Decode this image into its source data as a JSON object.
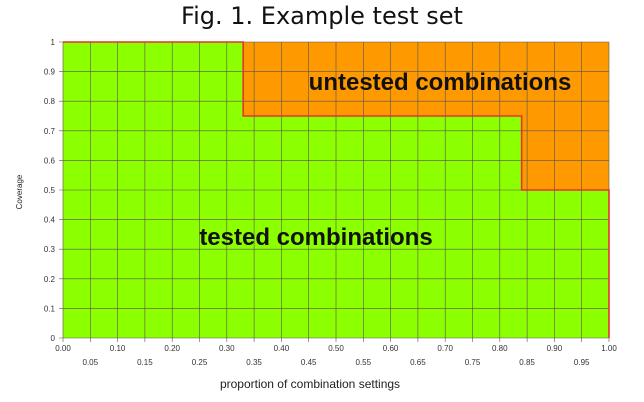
{
  "figure": {
    "title": "Fig. 1.  Example test set"
  },
  "chart_data": {
    "type": "area",
    "xlabel": "proportion of combination settings",
    "ylabel": "Coverage",
    "xlim": [
      0,
      1
    ],
    "ylim": [
      0,
      1
    ],
    "x_ticks_upper": [
      "0.00",
      "0.10",
      "0.20",
      "0.30",
      "0.40",
      "0.50",
      "0.60",
      "0.70",
      "0.80",
      "0.90",
      "1.00"
    ],
    "x_ticks_lower": [
      "0.05",
      "0.15",
      "0.25",
      "0.35",
      "0.45",
      "0.55",
      "0.65",
      "0.75",
      "0.85",
      "0.95"
    ],
    "y_ticks": [
      "0",
      "0.1",
      "0.2",
      "0.3",
      "0.4",
      "0.5",
      "0.6",
      "0.7",
      "0.8",
      "0.9",
      "1"
    ],
    "grid": true,
    "grid_step_x": 0.05,
    "grid_step_y": 0.1,
    "coverage_curve": [
      {
        "x": 0.0,
        "y": 1.0
      },
      {
        "x": 0.33,
        "y": 1.0
      },
      {
        "x": 0.33,
        "y": 0.75
      },
      {
        "x": 0.84,
        "y": 0.75
      },
      {
        "x": 0.84,
        "y": 0.5
      },
      {
        "x": 1.0,
        "y": 0.5
      },
      {
        "x": 1.0,
        "y": 0.0
      }
    ],
    "regions": {
      "tested": "tested combinations",
      "untested": "untested combinations"
    },
    "colors": {
      "tested": "#8cff00",
      "untested": "#ff9900",
      "curve": "#e83232",
      "grid": "#555555"
    }
  }
}
